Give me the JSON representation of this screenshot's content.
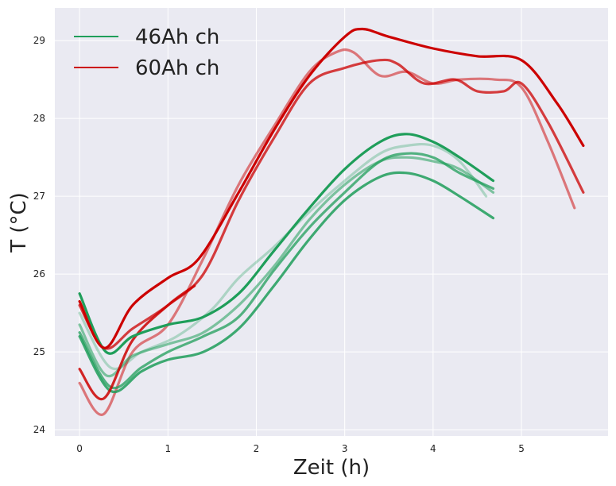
{
  "chart_data": {
    "type": "line",
    "xlabel": "Zeit (h)",
    "ylabel": "T (°C)",
    "xlim": [
      -0.28,
      5.98
    ],
    "ylim": [
      23.92,
      29.42
    ],
    "x_ticks": [
      "0",
      "1",
      "2",
      "3",
      "4",
      "5"
    ],
    "y_ticks": [
      "24",
      "25",
      "26",
      "27",
      "28",
      "29"
    ],
    "grid": true,
    "background": "#EAEAF2",
    "legend": {
      "placement": "top-left",
      "entries": [
        {
          "label": "46Ah ch",
          "color": "#1F9E5A"
        },
        {
          "label": "60Ah ch",
          "color": "#CC0000"
        }
      ]
    },
    "series": [
      {
        "group": "46Ah ch",
        "color": "#1F9E5A",
        "opacity": 1.0,
        "x": [
          0,
          0.3,
          0.6,
          1.0,
          1.4,
          1.8,
          2.2,
          2.6,
          3.0,
          3.4,
          3.7,
          4.0,
          4.3,
          4.68
        ],
        "y": [
          25.75,
          25.0,
          25.2,
          25.35,
          25.45,
          25.75,
          26.3,
          26.85,
          27.35,
          27.7,
          27.8,
          27.7,
          27.5,
          27.2
        ]
      },
      {
        "group": "46Ah ch",
        "color": "#1F9E5A",
        "opacity": 0.3,
        "x": [
          0,
          0.35,
          0.7,
          1.1,
          1.5,
          1.8,
          2.2,
          2.6,
          3.0,
          3.4,
          3.7,
          4.0,
          4.3,
          4.6
        ],
        "y": [
          25.5,
          24.8,
          25.0,
          25.2,
          25.55,
          25.95,
          26.35,
          26.8,
          27.2,
          27.55,
          27.65,
          27.65,
          27.45,
          27.0
        ]
      },
      {
        "group": "46Ah ch",
        "color": "#1F9E5A",
        "opacity": 0.55,
        "x": [
          0,
          0.3,
          0.6,
          1.0,
          1.4,
          1.8,
          2.2,
          2.6,
          3.0,
          3.4,
          3.7,
          4.0,
          4.3,
          4.68
        ],
        "y": [
          25.35,
          24.7,
          24.95,
          25.1,
          25.25,
          25.6,
          26.1,
          26.7,
          27.15,
          27.45,
          27.5,
          27.45,
          27.35,
          27.05
        ]
      },
      {
        "group": "46Ah ch",
        "color": "#1F9E5A",
        "opacity": 0.75,
        "x": [
          0,
          0.35,
          0.7,
          1.0,
          1.4,
          1.8,
          2.2,
          2.6,
          3.0,
          3.4,
          3.7,
          4.0,
          4.3,
          4.68
        ],
        "y": [
          25.25,
          24.55,
          24.8,
          25.0,
          25.2,
          25.45,
          26.05,
          26.6,
          27.05,
          27.45,
          27.55,
          27.5,
          27.3,
          27.1
        ]
      },
      {
        "group": "46Ah ch",
        "color": "#1F9E5A",
        "opacity": 0.85,
        "x": [
          0,
          0.35,
          0.7,
          1.0,
          1.4,
          1.8,
          2.2,
          2.6,
          3.0,
          3.4,
          3.7,
          4.0,
          4.3,
          4.68
        ],
        "y": [
          25.2,
          24.5,
          24.75,
          24.9,
          25.0,
          25.3,
          25.85,
          26.45,
          26.95,
          27.25,
          27.3,
          27.2,
          27.0,
          26.72
        ]
      },
      {
        "group": "60Ah ch",
        "color": "#CC0000",
        "opacity": 1.0,
        "x": [
          0,
          0.28,
          0.6,
          1.0,
          1.35,
          1.8,
          2.2,
          2.6,
          3.0,
          3.2,
          3.5,
          4.0,
          4.5,
          5.0,
          5.4,
          5.7
        ],
        "y": [
          25.65,
          25.05,
          25.6,
          25.95,
          26.2,
          27.05,
          27.85,
          28.55,
          29.05,
          29.15,
          29.05,
          28.9,
          28.8,
          28.75,
          28.2,
          27.65
        ]
      },
      {
        "group": "60Ah ch",
        "color": "#CC0000",
        "opacity": 0.75,
        "x": [
          0,
          0.28,
          0.6,
          1.0,
          1.4,
          1.8,
          2.2,
          2.6,
          3.0,
          3.4,
          3.6,
          3.9,
          4.25,
          4.5,
          4.8,
          5.0,
          5.3,
          5.7
        ],
        "y": [
          25.6,
          25.05,
          25.3,
          25.6,
          26.0,
          26.95,
          27.75,
          28.45,
          28.65,
          28.75,
          28.7,
          28.45,
          28.5,
          28.35,
          28.35,
          28.45,
          27.95,
          27.05
        ]
      },
      {
        "group": "60Ah ch",
        "color": "#CC0000",
        "opacity": 0.5,
        "x": [
          0,
          0.27,
          0.6,
          1.0,
          1.4,
          1.8,
          2.2,
          2.6,
          2.9,
          3.1,
          3.4,
          3.7,
          4.0,
          4.3,
          4.7,
          5.0,
          5.3,
          5.6
        ],
        "y": [
          24.6,
          24.2,
          25.0,
          25.35,
          26.2,
          27.15,
          27.9,
          28.6,
          28.85,
          28.85,
          28.55,
          28.6,
          28.45,
          28.5,
          28.5,
          28.4,
          27.7,
          26.85
        ]
      },
      {
        "group": "60Ah ch",
        "color": "#CC0000",
        "opacity": 0.85,
        "x": [
          0,
          0.27,
          0.6,
          1.0,
          1.3
        ],
        "y": [
          24.78,
          24.4,
          25.15,
          25.6,
          25.85
        ]
      }
    ]
  }
}
